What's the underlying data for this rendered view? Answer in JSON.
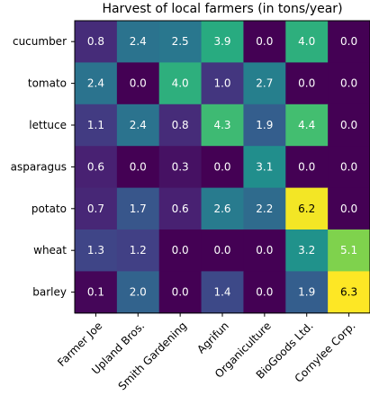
{
  "chart_data": {
    "type": "heatmap",
    "title": "Harvest of local farmers (in tons/year)",
    "xlabel": "",
    "ylabel": "",
    "x_categories": [
      "Farmer Joe",
      "Upland Bros.",
      "Smith Gardening",
      "Agrifun",
      "Organiculture",
      "BioGoods Ltd.",
      "Cornylee Corp."
    ],
    "y_categories": [
      "cucumber",
      "tomato",
      "lettuce",
      "asparagus",
      "potato",
      "wheat",
      "barley"
    ],
    "values": [
      [
        0.8,
        2.4,
        2.5,
        3.9,
        0.0,
        4.0,
        0.0
      ],
      [
        2.4,
        0.0,
        4.0,
        1.0,
        2.7,
        0.0,
        0.0
      ],
      [
        1.1,
        2.4,
        0.8,
        4.3,
        1.9,
        4.4,
        0.0
      ],
      [
        0.6,
        0.0,
        0.3,
        0.0,
        3.1,
        0.0,
        0.0
      ],
      [
        0.7,
        1.7,
        0.6,
        2.6,
        2.2,
        6.2,
        0.0
      ],
      [
        1.3,
        1.2,
        0.0,
        0.0,
        0.0,
        3.2,
        5.1
      ],
      [
        0.1,
        2.0,
        0.0,
        1.4,
        0.0,
        1.9,
        6.3
      ]
    ],
    "value_range": [
      0.0,
      6.3
    ],
    "colormap": "viridis",
    "annotations": "cell values shown in each cell",
    "grid": false,
    "legend": "none",
    "label_text_colors": {
      "dark_cell": "#ffffff",
      "bright_cell": "#000000"
    }
  }
}
